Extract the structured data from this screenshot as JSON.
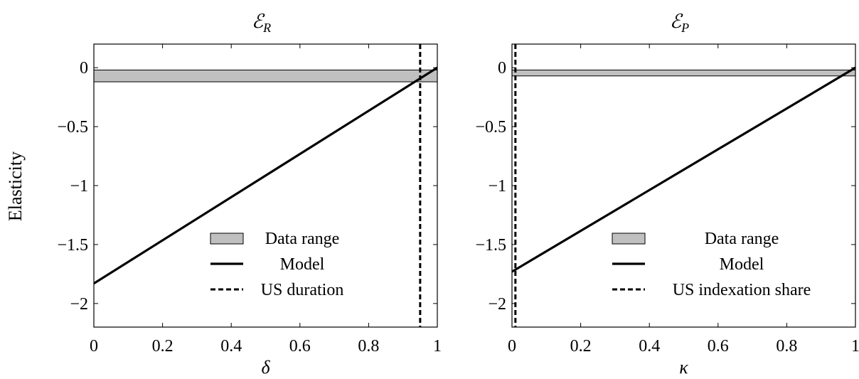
{
  "figure": {
    "ylabel": "Elasticity"
  },
  "chart_data": [
    {
      "type": "line",
      "title": "ℰ",
      "title_subscript": "R",
      "xlabel": "δ",
      "ylabel": "Elasticity",
      "xlim": [
        0,
        1
      ],
      "ylim": [
        -2.2,
        0.2
      ],
      "xticks": [
        0,
        0.2,
        0.4,
        0.6,
        0.8,
        1
      ],
      "xtick_labels": [
        "0",
        "0.2",
        "0.4",
        "0.6",
        "0.8",
        "1"
      ],
      "yticks": [
        0,
        -0.5,
        -1,
        -1.5,
        -2
      ],
      "ytick_labels": [
        "0",
        "−0.5",
        "−1",
        "−1.5",
        "−2"
      ],
      "grid": false,
      "legend_position": "bottom-right",
      "series": [
        {
          "name": "Data range",
          "kind": "band",
          "y_range": [
            -0.12,
            -0.02
          ],
          "color": "#c0c0c0"
        },
        {
          "name": "Model",
          "kind": "line",
          "x": [
            0,
            1
          ],
          "y": [
            -1.83,
            0
          ],
          "color": "#000000"
        },
        {
          "name": "US duration",
          "kind": "vline",
          "x": 0.95,
          "color": "#000000",
          "dash": "dashed"
        }
      ]
    },
    {
      "type": "line",
      "title": "ℰ",
      "title_subscript": "P",
      "xlabel": "κ",
      "ylabel": "",
      "xlim": [
        0,
        1
      ],
      "ylim": [
        -2.2,
        0.2
      ],
      "xticks": [
        0,
        0.2,
        0.4,
        0.6,
        0.8,
        1
      ],
      "xtick_labels": [
        "0",
        "0.2",
        "0.4",
        "0.6",
        "0.8",
        "1"
      ],
      "yticks": [
        0,
        -0.5,
        -1,
        -1.5,
        -2
      ],
      "ytick_labels": [
        "0",
        "−0.5",
        "−1",
        "−1.5",
        "−2"
      ],
      "grid": false,
      "legend_position": "bottom-right",
      "series": [
        {
          "name": "Data range",
          "kind": "band",
          "y_range": [
            -0.07,
            -0.02
          ],
          "color": "#c0c0c0"
        },
        {
          "name": "Model",
          "kind": "line",
          "x": [
            0,
            1
          ],
          "y": [
            -1.73,
            0
          ],
          "color": "#000000"
        },
        {
          "name": "US indexation share",
          "kind": "vline",
          "x": 0.01,
          "color": "#000000",
          "dash": "dashed"
        }
      ]
    }
  ]
}
